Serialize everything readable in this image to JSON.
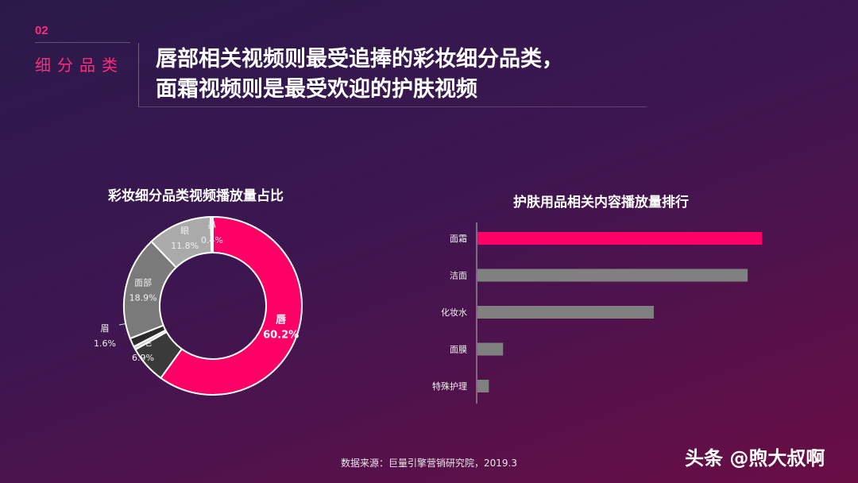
{
  "header": {
    "section_number": "02",
    "section_label": "细分品类",
    "title_line1": "唇部相关视频则最受追捧的彩妆细分品类，",
    "title_line2": "面霜视频则是最受欢迎的护肤视频"
  },
  "colors": {
    "accent": "#ff0066",
    "gray": "#8a8a8a"
  },
  "chart_data": [
    {
      "type": "pie",
      "variant": "donut",
      "title": "彩妆细分品类视频播放量占比",
      "slices": [
        {
          "label": "唇",
          "value": 60.2,
          "display": "60.2%",
          "color": "#ff0066"
        },
        {
          "label": "睫毛",
          "value": 6.9,
          "display": "6.9%",
          "color": "#3a3a3a"
        },
        {
          "label": "",
          "value": 0.6,
          "display": "",
          "color": "#cccccc"
        },
        {
          "label": "眉",
          "value": 1.6,
          "display": "1.6%",
          "color": "#2a2a2a"
        },
        {
          "label": "面部",
          "value": 18.9,
          "display": "18.9%",
          "color": "#7a7a7a"
        },
        {
          "label": "眼",
          "value": 11.8,
          "display": "11.8%",
          "color": "#aaaaaa"
        },
        {
          "label": "鼻",
          "value": 0.4,
          "display": "0.4%",
          "color": "#d8d8d8"
        }
      ]
    },
    {
      "type": "bar",
      "orientation": "horizontal",
      "title": "护肤用品相关内容播放量排行",
      "categories": [
        "面霜",
        "洁面",
        "化妆水",
        "面膜",
        "特殊护理"
      ],
      "values": [
        100,
        95,
        62,
        9,
        4
      ],
      "colors": [
        "#ff0066",
        "#808080",
        "#808080",
        "#808080",
        "#808080"
      ]
    }
  ],
  "footer": {
    "source": "数据来源：巨量引擎营销研究院，2019.3",
    "watermark": "头条 @煦大叔啊"
  }
}
